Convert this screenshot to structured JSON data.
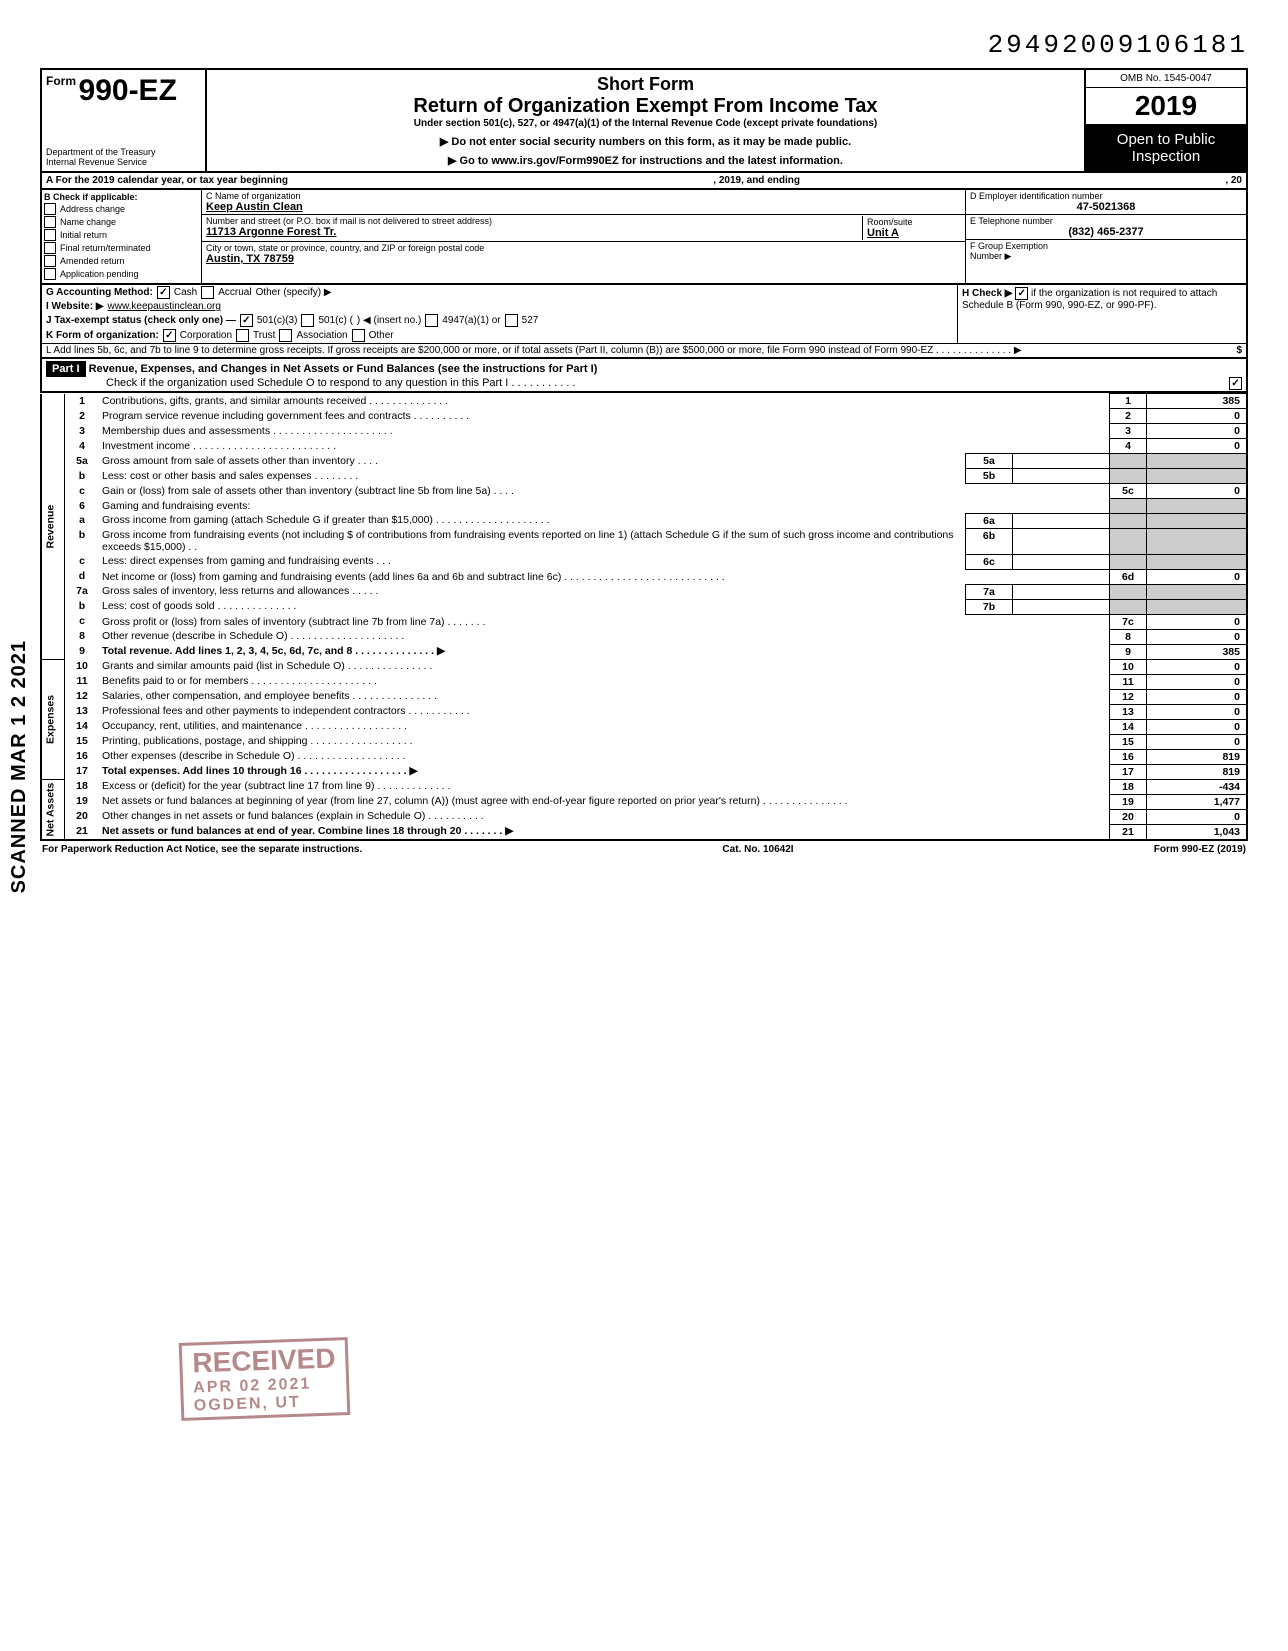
{
  "doc_id": "29492009106181",
  "form": {
    "form_label_small": "Form",
    "form_number": "990-EZ",
    "dept1": "Department of the Treasury",
    "dept2": "Internal Revenue Service",
    "short_form": "Short Form",
    "title": "Return of Organization Exempt From Income Tax",
    "subtitle": "Under section 501(c), 527, or 4947(a)(1) of the Internal Revenue Code (except private foundations)",
    "warn1": "▶ Do not enter social security numbers on this form, as it may be made public.",
    "warn2": "▶ Go to www.irs.gov/Form990EZ for instructions and the latest information.",
    "omb": "OMB No. 1545-0047",
    "year": "2019",
    "open1": "Open to Public",
    "open2": "Inspection"
  },
  "rowA": {
    "left": "A  For the 2019 calendar year, or tax year beginning",
    "mid": ", 2019, and ending",
    "right": ", 20"
  },
  "B": {
    "label": "B  Check if applicable:",
    "items": [
      "Address change",
      "Name change",
      "Initial return",
      "Final return/terminated",
      "Amended return",
      "Application pending"
    ]
  },
  "C": {
    "label": "C  Name of organization",
    "name": "Keep Austin Clean",
    "addr_label": "Number and street (or P.O. box if mail is not delivered to street address)",
    "addr": "11713 Argonne Forest Tr.",
    "room_label": "Room/suite",
    "room": "Unit A",
    "city_label": "City or town, state or province, country, and ZIP or foreign postal code",
    "city": "Austin, TX 78759"
  },
  "D": {
    "label": "D Employer identification number",
    "val": "47-5021368"
  },
  "E": {
    "label": "E Telephone number",
    "val": "(832) 465-2377"
  },
  "F": {
    "label": "F Group Exemption",
    "label2": "Number ▶",
    "val": ""
  },
  "G": {
    "label": "G  Accounting Method:",
    "cash": "Cash",
    "accrual": "Accrual",
    "other": "Other (specify) ▶",
    "cash_checked": true
  },
  "H": {
    "label": "H  Check ▶",
    "text": "if the organization is not required to attach Schedule B (Form 990, 990-EZ, or 990-PF).",
    "checked": true
  },
  "I": {
    "label": "I   Website: ▶",
    "val": "www.keepaustinclean.org"
  },
  "J": {
    "label": "J  Tax-exempt status (check only one) —",
    "c3": "501(c)(3)",
    "c": "501(c) (",
    "ins": ") ◀ (insert no.)",
    "a1": "4947(a)(1) or",
    "s527": "527",
    "c3_checked": true
  },
  "K": {
    "label": "K  Form of organization:",
    "corp": "Corporation",
    "trust": "Trust",
    "assoc": "Association",
    "other": "Other",
    "corp_checked": true
  },
  "L": {
    "text": "L  Add lines 5b, 6c, and 7b to line 9 to determine gross receipts. If gross receipts are $200,000 or more, or if total assets (Part II, column (B)) are $500,000 or more, file Form 990 instead of Form 990-EZ .    .    .    .    .    .    .    .    .    .    .    .    .    .    ▶",
    "amt": "$"
  },
  "part1": {
    "hdr": "Part I",
    "title": "Revenue, Expenses, and Changes in Net Assets or Fund Balances (see the instructions for Part I)",
    "check": "Check if the organization used Schedule O to respond to any question in this Part I  .    .    .    .    .    .    .    .    .    .    .",
    "checked": true
  },
  "sections": {
    "rev": "Revenue",
    "exp": "Expenses",
    "net": "Net Assets"
  },
  "lines": [
    {
      "n": "1",
      "t": "Contributions, gifts, grants, and similar amounts received .    .    .    .    .    .    .    .    .    .    .    .    .    .",
      "box": "1",
      "amt": "385"
    },
    {
      "n": "2",
      "t": "Program service revenue including government fees and contracts   .    .    .    .    .    .    .    .    .    .",
      "box": "2",
      "amt": "0"
    },
    {
      "n": "3",
      "t": "Membership dues and assessments .    .    .    .    .    .    .    .    .    .    .    .    .    .    .    .    .    .    .    .    .",
      "box": "3",
      "amt": "0"
    },
    {
      "n": "4",
      "t": "Investment income     .    .    .    .    .    .    .    .    .    .    .    .    .    .    .    .    .    .    .    .    .    .    .    .    .",
      "box": "4",
      "amt": "0"
    },
    {
      "n": "5a",
      "t": "Gross amount from sale of assets other than inventory    .    .    .    .",
      "mid": "5a",
      "midamt": ""
    },
    {
      "n": "b",
      "t": "Less: cost or other basis and sales expenses .    .    .    .    .    .    .    .",
      "mid": "5b",
      "midamt": ""
    },
    {
      "n": "c",
      "t": "Gain or (loss) from sale of assets other than inventory (subtract line 5b from line 5a)  .    .    .    .",
      "box": "5c",
      "amt": "0"
    },
    {
      "n": "6",
      "t": "Gaming and fundraising events:"
    },
    {
      "n": "a",
      "t": "Gross income from gaming (attach Schedule G if greater than $15,000) .    .    .    .    .    .    .    .    .    .    .    .    .    .    .    .    .    .    .    .",
      "mid": "6a",
      "midamt": ""
    },
    {
      "n": "b",
      "t": "Gross income from fundraising events (not including  $                       of contributions from fundraising events reported on line 1) (attach Schedule G if the sum of such gross income and contributions exceeds $15,000) .    .",
      "mid": "6b",
      "midamt": ""
    },
    {
      "n": "c",
      "t": "Less: direct expenses from gaming and fundraising events    .    .    .",
      "mid": "6c",
      "midamt": ""
    },
    {
      "n": "d",
      "t": "Net income or (loss) from gaming and fundraising events (add lines 6a and 6b and subtract line 6c)     .    .    .    .    .    .    .    .    .    .    .    .    .    .    .    .    .    .    .    .    .    .    .    .    .    .    .    .",
      "box": "6d",
      "amt": "0"
    },
    {
      "n": "7a",
      "t": "Gross sales of inventory, less returns and allowances   .    .    .    .    .",
      "mid": "7a",
      "midamt": ""
    },
    {
      "n": "b",
      "t": "Less: cost of goods sold     .    .    .    .    .    .    .    .    .    .    .    .    .    .",
      "mid": "7b",
      "midamt": ""
    },
    {
      "n": "c",
      "t": "Gross profit or (loss) from sales of inventory (subtract line 7b from line 7a)   .    .    .    .    .    .    .",
      "box": "7c",
      "amt": "0"
    },
    {
      "n": "8",
      "t": "Other revenue (describe in Schedule O) .    .    .    .    .    .    .    .    .    .    .    .    .    .    .    .    .    .    .    .",
      "box": "8",
      "amt": "0"
    },
    {
      "n": "9",
      "t": "Total revenue. Add lines 1, 2, 3, 4, 5c, 6d, 7c, and 8    .    .    .    .    .    .    .    .    .    .    .    .    .    .   ▶",
      "box": "9",
      "amt": "385",
      "bold": true
    },
    {
      "n": "10",
      "t": "Grants and similar amounts paid (list in Schedule O)   .    .    .    .    .    .    .    .    .    .    .    .    .    .    .",
      "box": "10",
      "amt": "0"
    },
    {
      "n": "11",
      "t": "Benefits paid to or for members    .    .    .    .    .    .    .    .    .    .    .    .    .    .    .    .    .    .    .    .    .    .",
      "box": "11",
      "amt": "0"
    },
    {
      "n": "12",
      "t": "Salaries, other compensation, and employee benefits   .    .    .    .    .    .    .    .    .    .    .    .    .    .    .",
      "box": "12",
      "amt": "0"
    },
    {
      "n": "13",
      "t": "Professional fees and other payments to independent contractors .    .    .    .    .    .    .    .    .    .    .",
      "box": "13",
      "amt": "0"
    },
    {
      "n": "14",
      "t": "Occupancy, rent, utilities, and maintenance    .    .    .    .    .    .    .    .    .    .    .    .    .    .    .    .    .    .",
      "box": "14",
      "amt": "0"
    },
    {
      "n": "15",
      "t": "Printing, publications, postage, and shipping .    .    .    .    .    .    .    .    .    .    .    .    .    .    .    .    .    .",
      "box": "15",
      "amt": "0"
    },
    {
      "n": "16",
      "t": "Other expenses (describe in Schedule O)   .    .    .    .    .    .    .    .    .    .    .    .    .    .    .    .    .    .    .",
      "box": "16",
      "amt": "819"
    },
    {
      "n": "17",
      "t": "Total expenses. Add lines 10 through 16   .    .    .    .    .    .    .    .    .    .    .    .    .    .    .    .    .    .   ▶",
      "box": "17",
      "amt": "819",
      "bold": true
    },
    {
      "n": "18",
      "t": "Excess or (deficit) for the year (subtract line 17 from line 9)    .    .    .    .    .    .    .    .    .    .    .    .    .",
      "box": "18",
      "amt": "-434"
    },
    {
      "n": "19",
      "t": "Net assets or fund balances at beginning of year (from line 27, column (A)) (must agree with end-of-year figure reported on prior year's return)    .    .    .    .    .    .    .    .    .    .    .    .    .    .    .",
      "box": "19",
      "amt": "1,477"
    },
    {
      "n": "20",
      "t": "Other changes in net assets or fund balances (explain in Schedule O) .    .    .    .    .    .    .    .    .    .",
      "box": "20",
      "amt": "0"
    },
    {
      "n": "21",
      "t": "Net assets or fund balances at end of year. Combine lines 18 through 20    .    .    .    .    .    .    .   ▶",
      "box": "21",
      "amt": "1,043",
      "bold": true
    }
  ],
  "scanned": "SCANNED MAR 1 2 2021",
  "stamp": {
    "l1": "RECEIVED",
    "l2": "APR 02 2021",
    "l3": "OGDEN, UT"
  },
  "footer": {
    "left": "For Paperwork Reduction Act Notice, see the separate instructions.",
    "mid": "Cat. No. 10642I",
    "right": "Form 990-EZ (2019)"
  },
  "colors": {
    "black": "#000000",
    "grey": "#cccccc",
    "stamp": "rgba(120,40,40,0.55)"
  }
}
